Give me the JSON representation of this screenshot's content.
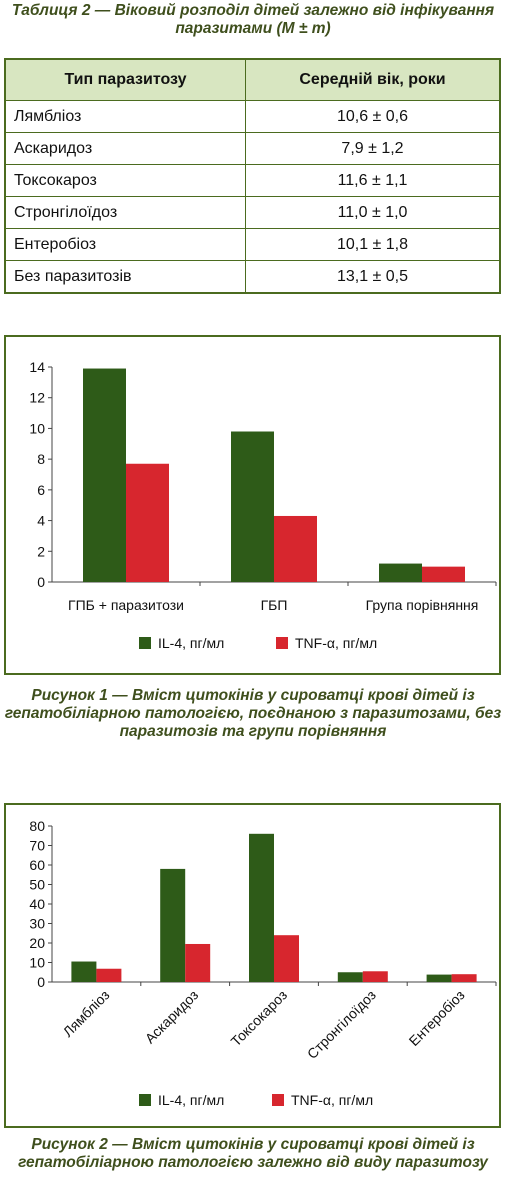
{
  "table2": {
    "caption": "Таблиця 2 — Віковий розподіл дітей залежно від інфікування паразитами (M ± m)",
    "headers": [
      "Тип паразитозу",
      "Середній вік, роки"
    ],
    "rows": [
      {
        "type": "Лямбліоз",
        "age": "10,6 ± 0,6"
      },
      {
        "type": "Аскаридоз",
        "age": "7,9 ± 1,2"
      },
      {
        "type": "Токсокароз",
        "age": "11,6 ± 1,1"
      },
      {
        "type": "Стронгілоїдоз",
        "age": "11,0 ± 1,0"
      },
      {
        "type": "Ентеробіоз",
        "age": "10,1 ± 1,8"
      },
      {
        "type": "Без паразитозів",
        "age": "13,1 ± 0,5"
      }
    ]
  },
  "figure1_caption": "Рисунок 1 — Вміст цитокінів у сироватці крові дітей із гепатобіліарною патологією, поєднаною з паразитозами, без паразитозів та групи порівняння",
  "figure2_caption": "Рисунок 2 — Вміст цитокінів у сироватці крові дітей із гепатобіліарною патологією залежно від виду паразитозу",
  "colors": {
    "il4": "#2e5b18",
    "tnf": "#d7262e",
    "frame": "#4b6b1f",
    "caption": "#3f4f1d"
  },
  "chart_data": [
    {
      "type": "bar",
      "categories": [
        "ГПБ + паразитози",
        "ГБП",
        "Група порівняння"
      ],
      "series": [
        {
          "name": "IL-4, пг/мл",
          "values": [
            13.9,
            9.8,
            1.2
          ]
        },
        {
          "name": "TNF-α, пг/мл",
          "values": [
            7.7,
            4.3,
            1.0
          ]
        }
      ],
      "yticks": [
        0,
        2,
        4,
        6,
        8,
        10,
        12,
        14
      ],
      "ylim": [
        0,
        14
      ],
      "legend": "bottom"
    },
    {
      "type": "bar",
      "categories": [
        "Лямбліоз",
        "Аскаридоз",
        "Токсокароз",
        "Стронгілоїдоз",
        "Ентеробіоз"
      ],
      "series": [
        {
          "name": "IL-4, пг/мл",
          "values": [
            10.5,
            58,
            76,
            5,
            3.8
          ]
        },
        {
          "name": "TNF-α, пг/мл",
          "values": [
            6.8,
            19.5,
            24,
            5.5,
            4
          ]
        }
      ],
      "yticks": [
        0,
        10,
        20,
        30,
        40,
        50,
        60,
        70,
        80
      ],
      "ylim": [
        0,
        80
      ],
      "legend": "bottom"
    }
  ]
}
